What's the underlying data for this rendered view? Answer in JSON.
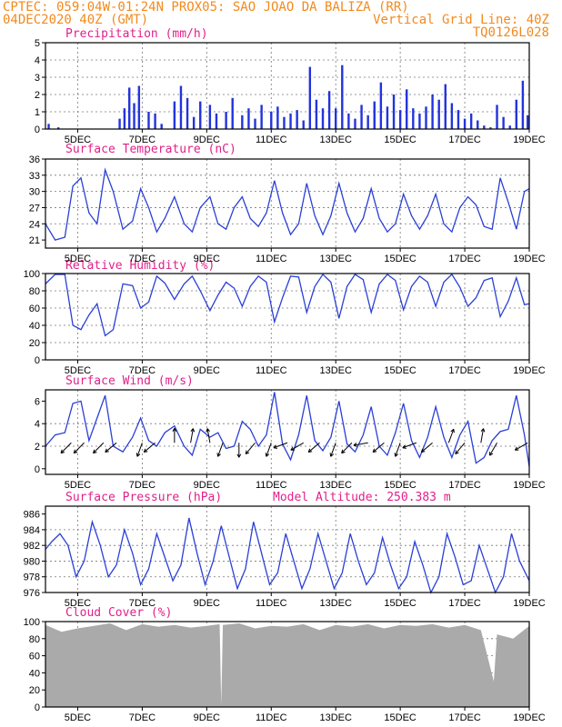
{
  "header": {
    "line1_left": "CPTEC:  059:04W-01:24N  PROX05: SAO JOAO DA BALIZA (RR)",
    "line2_left": "04DEC2020 40Z (GMT)",
    "line2_right": "Vertical Grid Line: 40Z",
    "line3_right": "TQ0126L028"
  },
  "colors": {
    "header": "#f28a1e",
    "panel_title": "#e0218a",
    "line": "#2a3fd6",
    "bar": "#2233dd",
    "cloud": "#aaaaaa",
    "arrow": "#000000"
  },
  "x_tick_labels": [
    "5DEC",
    "7DEC",
    "9DEC",
    "11DEC",
    "13DEC",
    "15DEC",
    "17DEC",
    "19DEC"
  ],
  "chart_data": [
    {
      "id": "precip",
      "type": "bar",
      "title": "Precipitation (mm/h)",
      "ylim": [
        0,
        5
      ],
      "yticks": [
        0,
        1,
        2,
        3,
        4,
        5
      ],
      "x_range_days": [
        4.0,
        19.0
      ],
      "x": [
        4.1,
        4.4,
        6.3,
        6.45,
        6.6,
        6.75,
        6.9,
        7.2,
        7.4,
        7.6,
        8.0,
        8.2,
        8.4,
        8.6,
        8.8,
        9.1,
        9.3,
        9.6,
        9.8,
        10.1,
        10.3,
        10.5,
        10.7,
        11.0,
        11.2,
        11.4,
        11.6,
        11.8,
        12.0,
        12.2,
        12.4,
        12.6,
        12.8,
        13.0,
        13.2,
        13.4,
        13.6,
        13.8,
        14.0,
        14.2,
        14.4,
        14.6,
        14.8,
        15.0,
        15.2,
        15.4,
        15.6,
        15.8,
        16.0,
        16.2,
        16.4,
        16.6,
        16.8,
        17.0,
        17.2,
        17.4,
        17.6,
        17.8,
        18.0,
        18.2,
        18.4,
        18.6,
        18.8,
        18.95
      ],
      "values": [
        0.3,
        0.1,
        0.6,
        1.2,
        2.4,
        1.5,
        2.5,
        1.0,
        0.9,
        0.3,
        1.6,
        2.5,
        1.8,
        0.7,
        1.6,
        1.4,
        0.9,
        1.0,
        1.8,
        0.8,
        1.2,
        0.6,
        1.4,
        1.0,
        1.3,
        0.7,
        0.9,
        1.1,
        0.5,
        3.6,
        1.7,
        1.2,
        2.2,
        1.2,
        3.7,
        0.9,
        0.6,
        1.4,
        0.8,
        1.6,
        2.7,
        1.3,
        2.0,
        1.1,
        2.3,
        1.2,
        0.9,
        1.3,
        2.0,
        1.7,
        2.6,
        1.5,
        1.1,
        0.6,
        0.9,
        0.5,
        0.2,
        0.1,
        1.4,
        0.7,
        0.2,
        1.7,
        2.8,
        0.8
      ]
    },
    {
      "id": "temp",
      "type": "line",
      "title": "Surface Temperature (nC)",
      "ylim": [
        19.5,
        36
      ],
      "yticks": [
        21,
        24,
        27,
        30,
        33,
        36
      ],
      "x": [
        4.0,
        4.3,
        4.6,
        4.85,
        5.1,
        5.35,
        5.6,
        5.85,
        6.1,
        6.4,
        6.7,
        6.95,
        7.2,
        7.45,
        7.7,
        8.0,
        8.3,
        8.55,
        8.8,
        9.1,
        9.35,
        9.6,
        9.85,
        10.1,
        10.35,
        10.6,
        10.85,
        11.1,
        11.35,
        11.6,
        11.85,
        12.1,
        12.35,
        12.6,
        12.85,
        13.1,
        13.35,
        13.6,
        13.85,
        14.1,
        14.35,
        14.6,
        14.85,
        15.1,
        15.35,
        15.6,
        15.85,
        16.1,
        16.35,
        16.6,
        16.85,
        17.1,
        17.35,
        17.6,
        17.85,
        18.1,
        18.35,
        18.6,
        18.85,
        19.0
      ],
      "values": [
        24.0,
        21.0,
        21.5,
        31.0,
        32.5,
        26.0,
        24.0,
        34.0,
        30.0,
        23.0,
        24.5,
        30.5,
        27.0,
        22.5,
        25.0,
        29.0,
        24.0,
        22.5,
        27.0,
        29.0,
        24.0,
        23.0,
        27.0,
        29.0,
        25.0,
        23.5,
        26.0,
        32.0,
        26.0,
        22.0,
        24.0,
        31.5,
        25.5,
        22.0,
        25.5,
        31.5,
        26.0,
        22.5,
        25.0,
        30.5,
        25.0,
        22.5,
        24.0,
        29.5,
        25.5,
        23.0,
        25.5,
        29.5,
        24.0,
        22.5,
        27.0,
        29.0,
        27.5,
        23.5,
        23.0,
        32.5,
        28.0,
        23.0,
        30.0,
        30.5
      ]
    },
    {
      "id": "rh",
      "type": "line",
      "title": "Relative Humidity (%)",
      "ylim": [
        0,
        100
      ],
      "yticks": [
        0,
        20,
        40,
        60,
        80,
        100
      ],
      "x": [
        4.0,
        4.3,
        4.6,
        4.85,
        5.1,
        5.35,
        5.6,
        5.85,
        6.1,
        6.4,
        6.7,
        6.95,
        7.2,
        7.45,
        7.7,
        8.0,
        8.3,
        8.55,
        8.8,
        9.1,
        9.35,
        9.6,
        9.85,
        10.1,
        10.35,
        10.6,
        10.85,
        11.1,
        11.35,
        11.6,
        11.85,
        12.1,
        12.35,
        12.6,
        12.85,
        13.1,
        13.35,
        13.6,
        13.85,
        14.1,
        14.35,
        14.6,
        14.85,
        15.1,
        15.35,
        15.6,
        15.85,
        16.1,
        16.35,
        16.6,
        16.85,
        17.1,
        17.35,
        17.6,
        17.85,
        18.1,
        18.35,
        18.6,
        18.85,
        19.0
      ],
      "values": [
        88.0,
        99.0,
        99.0,
        40.0,
        35.0,
        52.0,
        65.0,
        28.0,
        35.0,
        88.0,
        86.0,
        60.0,
        67.0,
        97.0,
        89.0,
        70.0,
        88.0,
        97.0,
        80.0,
        57.0,
        75.0,
        90.0,
        83.0,
        62.0,
        85.0,
        97.0,
        90.0,
        44.0,
        72.0,
        97.0,
        96.0,
        55.0,
        85.0,
        99.0,
        90.0,
        48.0,
        85.0,
        99.0,
        93.0,
        55.0,
        88.0,
        99.0,
        92.0,
        58.0,
        85.0,
        97.0,
        90.0,
        62.0,
        90.0,
        99.0,
        84.0,
        62.0,
        72.0,
        92.0,
        95.0,
        50.0,
        68.0,
        95.0,
        64.0,
        65.0
      ]
    },
    {
      "id": "wind",
      "type": "line",
      "title": "Surface Wind (m/s)",
      "ylim": [
        -0.5,
        7
      ],
      "yticks": [
        0,
        2,
        4,
        6
      ],
      "x": [
        4.0,
        4.3,
        4.6,
        4.85,
        5.1,
        5.35,
        5.6,
        5.85,
        6.1,
        6.4,
        6.7,
        6.95,
        7.2,
        7.45,
        7.7,
        8.0,
        8.3,
        8.55,
        8.8,
        9.1,
        9.35,
        9.6,
        9.85,
        10.1,
        10.35,
        10.6,
        10.85,
        11.1,
        11.35,
        11.6,
        11.85,
        12.1,
        12.35,
        12.6,
        12.85,
        13.1,
        13.35,
        13.6,
        13.85,
        14.1,
        14.35,
        14.6,
        14.85,
        15.1,
        15.35,
        15.6,
        15.85,
        16.1,
        16.35,
        16.6,
        16.85,
        17.1,
        17.35,
        17.6,
        17.85,
        18.1,
        18.35,
        18.6,
        18.85,
        19.0
      ],
      "values": [
        2.0,
        3.0,
        3.2,
        5.8,
        6.0,
        2.5,
        4.5,
        6.5,
        2.0,
        1.5,
        2.8,
        4.5,
        2.5,
        2.0,
        3.2,
        3.8,
        2.0,
        1.2,
        3.5,
        2.8,
        3.2,
        1.8,
        2.0,
        4.2,
        3.5,
        2.0,
        3.0,
        6.8,
        2.2,
        0.8,
        3.0,
        6.5,
        2.5,
        1.6,
        2.8,
        6.0,
        2.2,
        1.5,
        3.0,
        5.5,
        2.0,
        1.2,
        3.2,
        5.8,
        2.5,
        1.0,
        2.8,
        5.5,
        2.8,
        1.0,
        3.0,
        4.2,
        0.5,
        1.0,
        2.5,
        3.3,
        3.5,
        6.5,
        3.0,
        0.2
      ],
      "arrows_x": [
        4.8,
        5.2,
        5.8,
        6.2,
        7.0,
        7.4,
        8.0,
        8.5,
        9.1,
        9.5,
        10.0,
        10.5,
        11.0,
        11.5,
        12.0,
        12.5,
        13.0,
        13.5,
        14.0,
        14.5,
        15.0,
        15.5,
        16.0,
        16.5,
        17.0,
        17.5,
        18.0,
        18.95
      ],
      "arrows_dir_deg": [
        225,
        225,
        225,
        230,
        200,
        230,
        0,
        10,
        350,
        200,
        180,
        220,
        200,
        250,
        240,
        230,
        200,
        225,
        260,
        230,
        200,
        250,
        230,
        20,
        220,
        10,
        210,
        240
      ]
    },
    {
      "id": "pres",
      "type": "line",
      "title": "Surface Pressure (hPa)",
      "subtitle": "Model Altitude: 250.383 m",
      "ylim": [
        976,
        987
      ],
      "yticks": [
        976,
        978,
        980,
        982,
        984,
        986
      ],
      "x": [
        4.0,
        4.2,
        4.45,
        4.7,
        4.95,
        5.2,
        5.45,
        5.7,
        5.95,
        6.2,
        6.45,
        6.7,
        6.95,
        7.2,
        7.45,
        7.7,
        7.95,
        8.2,
        8.45,
        8.7,
        8.95,
        9.2,
        9.45,
        9.7,
        9.95,
        10.2,
        10.45,
        10.7,
        10.95,
        11.2,
        11.45,
        11.7,
        11.95,
        12.2,
        12.45,
        12.7,
        12.95,
        13.2,
        13.45,
        13.7,
        13.95,
        14.2,
        14.45,
        14.7,
        14.95,
        15.2,
        15.45,
        15.7,
        15.95,
        16.2,
        16.45,
        16.7,
        16.95,
        17.2,
        17.45,
        17.7,
        17.95,
        18.2,
        18.45,
        18.7,
        19.0
      ],
      "values": [
        981.5,
        982.5,
        983.5,
        982.0,
        978.0,
        980.0,
        985.0,
        982.0,
        978.0,
        979.5,
        984.0,
        981.0,
        977.0,
        979.0,
        983.5,
        980.5,
        977.5,
        979.5,
        985.5,
        981.0,
        977.0,
        980.0,
        984.5,
        980.5,
        976.5,
        979.0,
        985.0,
        981.0,
        977.0,
        978.5,
        983.5,
        980.0,
        976.5,
        979.0,
        983.5,
        980.0,
        976.5,
        978.5,
        983.5,
        980.0,
        977.0,
        978.5,
        983.0,
        979.5,
        976.5,
        978.0,
        982.5,
        979.5,
        976.0,
        978.0,
        983.5,
        980.5,
        977.0,
        977.5,
        982.0,
        979.0,
        976.0,
        978.0,
        983.5,
        980.0,
        977.5
      ]
    },
    {
      "id": "cloud",
      "type": "area",
      "title": "Cloud Cover (%)",
      "ylim": [
        0,
        100
      ],
      "yticks": [
        0,
        20,
        40,
        60,
        80,
        100
      ],
      "x": [
        4.0,
        4.5,
        5.0,
        5.5,
        6.0,
        6.5,
        7.0,
        7.5,
        8.0,
        8.5,
        9.0,
        9.4,
        9.45,
        9.5,
        10.0,
        10.5,
        11.0,
        11.5,
        12.0,
        12.5,
        13.0,
        13.5,
        14.0,
        14.5,
        15.0,
        15.5,
        16.0,
        16.5,
        17.0,
        17.5,
        17.9,
        18.0,
        18.5,
        19.0
      ],
      "values": [
        96,
        88,
        92,
        95,
        98,
        90,
        97,
        94,
        96,
        93,
        95,
        97,
        2,
        96,
        98,
        92,
        95,
        94,
        97,
        90,
        96,
        94,
        97,
        92,
        96,
        95,
        97,
        93,
        96,
        90,
        30,
        85,
        80,
        95
      ]
    }
  ]
}
